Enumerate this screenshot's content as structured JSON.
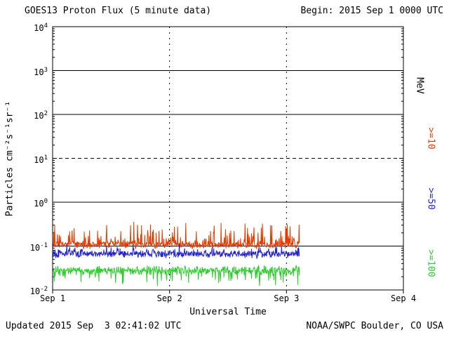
{
  "header": {
    "title": "GOES13 Proton Flux (5 minute data)",
    "begin": "Begin: 2015 Sep 1 0000 UTC"
  },
  "footer": {
    "updated": "Updated 2015 Sep  3 02:41:02 UTC",
    "credit": "NOAA/SWPC Boulder, CO USA"
  },
  "right_labels": {
    "units": "MeV"
  },
  "colors": {
    "background": "#ffffff",
    "axis": "#000000",
    "ge10": "#e23b00",
    "ge50": "#2222cc",
    "ge100": "#2ecc2e"
  },
  "chart_data": {
    "type": "line",
    "title": "GOES13 Proton Flux (5 minute data)",
    "xlabel": "Universal Time",
    "ylabel": "Particles cm⁻²s⁻¹sr⁻¹",
    "x_axis": {
      "tick_labels": [
        "Sep 1",
        "Sep 2",
        "Sep 3",
        "Sep 4"
      ],
      "range_days": [
        0,
        3
      ],
      "start_label": "2015 Sep 1 0000 UTC"
    },
    "y_axis": {
      "scale": "log10",
      "tick_exponents": [
        4,
        3,
        2,
        1,
        0,
        -1,
        -2
      ],
      "range": [
        0.01,
        10000
      ]
    },
    "gridlines": {
      "solid_y_exponents": [
        3,
        2,
        0,
        -1
      ],
      "dashed_y_exponents": [
        1
      ],
      "vertical_dashed_at_days": [
        1,
        2
      ]
    },
    "data_extent_days": 2.111,
    "cadence_minutes": 5,
    "series": [
      {
        "name": "ge10MeV",
        "label": ">=10",
        "threshold_mev": 10,
        "color": "#e23b00",
        "approx_flux_range": [
          0.08,
          0.4
        ],
        "baseline_log10": -0.97,
        "jitter_log10": 0.1,
        "spike_prob": 0.3,
        "spike_amp_log10": 0.5,
        "spike_dir": 1,
        "seed": 7
      },
      {
        "name": "ge50MeV",
        "label": ">=50",
        "threshold_mev": 50,
        "color": "#2222cc",
        "approx_flux_range": [
          0.04,
          0.1
        ],
        "baseline_log10": -1.18,
        "jitter_log10": 0.1,
        "spike_prob": 0.18,
        "spike_amp_log10": 0.18,
        "spike_dir": 1,
        "seed": 13
      },
      {
        "name": "ge100MeV",
        "label": ">=100",
        "threshold_mev": 100,
        "color": "#2ecc2e",
        "approx_flux_range": [
          0.015,
          0.05
        ],
        "baseline_log10": -1.55,
        "jitter_log10": 0.12,
        "spike_prob": 0.25,
        "spike_amp_log10": 0.3,
        "spike_dir": -1,
        "seed": 21
      }
    ]
  }
}
